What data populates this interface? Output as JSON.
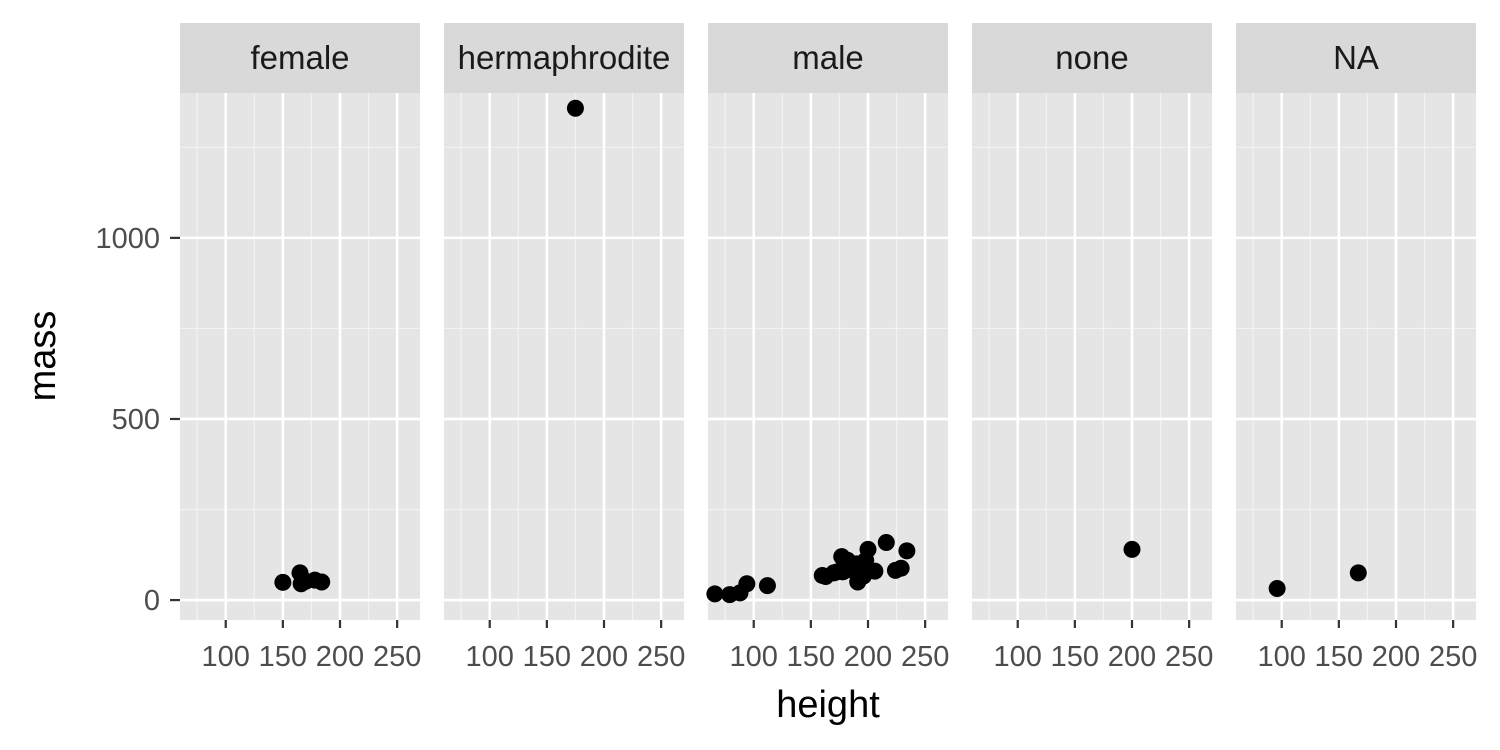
{
  "chart_data": {
    "type": "scatter",
    "facet_variable": "sex",
    "xlabel": "height",
    "ylabel": "mass",
    "xlim": [
      60,
      270
    ],
    "ylim": [
      -55,
      1400
    ],
    "x_ticks": [
      100,
      150,
      200,
      250
    ],
    "x_tick_labels": [
      "100",
      "150",
      "200",
      "250"
    ],
    "y_ticks": [
      0,
      500,
      1000
    ],
    "y_tick_labels": [
      "0",
      "500",
      "1000"
    ],
    "grid": true,
    "panel_background": "#e5e5e5",
    "strip_background": "#d9d9d9",
    "point_color": "#000000",
    "facets": [
      {
        "label": "female",
        "points": [
          {
            "x": 150,
            "y": 49
          },
          {
            "x": 165,
            "y": 75
          },
          {
            "x": 166,
            "y": 45
          },
          {
            "x": 168,
            "y": 55
          },
          {
            "x": 170,
            "y": 52
          },
          {
            "x": 178,
            "y": 55
          },
          {
            "x": 184,
            "y": 50
          }
        ]
      },
      {
        "label": "hermaphrodite",
        "points": [
          {
            "x": 175,
            "y": 1358
          }
        ]
      },
      {
        "label": "male",
        "points": [
          {
            "x": 66,
            "y": 17
          },
          {
            "x": 79,
            "y": 15
          },
          {
            "x": 88,
            "y": 20
          },
          {
            "x": 94,
            "y": 45
          },
          {
            "x": 112,
            "y": 40
          },
          {
            "x": 160,
            "y": 68
          },
          {
            "x": 163,
            "y": 65
          },
          {
            "x": 170,
            "y": 75
          },
          {
            "x": 172,
            "y": 77
          },
          {
            "x": 175,
            "y": 80
          },
          {
            "x": 177,
            "y": 120
          },
          {
            "x": 178,
            "y": 78
          },
          {
            "x": 180,
            "y": 90
          },
          {
            "x": 182,
            "y": 110
          },
          {
            "x": 183,
            "y": 84
          },
          {
            "x": 185,
            "y": 85
          },
          {
            "x": 188,
            "y": 80
          },
          {
            "x": 190,
            "y": 100
          },
          {
            "x": 191,
            "y": 50
          },
          {
            "x": 193,
            "y": 80
          },
          {
            "x": 196,
            "y": 66
          },
          {
            "x": 198,
            "y": 110
          },
          {
            "x": 200,
            "y": 140
          },
          {
            "x": 206,
            "y": 80
          },
          {
            "x": 216,
            "y": 159
          },
          {
            "x": 224,
            "y": 82
          },
          {
            "x": 229,
            "y": 88
          },
          {
            "x": 234,
            "y": 136
          }
        ]
      },
      {
        "label": "none",
        "points": [
          {
            "x": 200,
            "y": 140
          }
        ]
      },
      {
        "label": "NA",
        "points": [
          {
            "x": 96,
            "y": 32
          },
          {
            "x": 167,
            "y": 75
          }
        ]
      }
    ]
  }
}
